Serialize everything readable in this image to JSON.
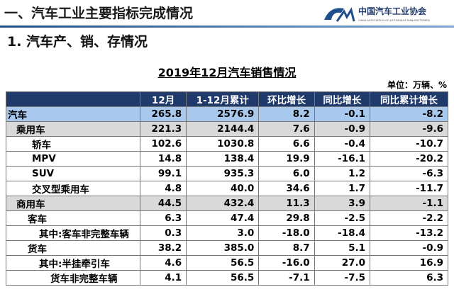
{
  "header": {
    "title": "一、汽车工业主要指标完成情况",
    "logo_cn": "中国汽车工业协会",
    "logo_en": "CHINA ASSOCIATION OF AUTOMOBILE MANUFACTURERS"
  },
  "section": "1. 汽车产、销、存情况",
  "table": {
    "title": "2019年12月汽车销售情况",
    "unit": "单位：万辆、%",
    "columns": [
      "",
      "12月",
      "1-12月累计",
      "环比增长",
      "同比增长",
      "同比累计增长"
    ],
    "rows": [
      [
        "汽车",
        "265.8",
        "2576.9",
        "8.2",
        "-0.1",
        "-8.2"
      ],
      [
        "乘用车",
        "221.3",
        "2144.4",
        "7.6",
        "-0.9",
        "-9.6"
      ],
      [
        "轿车",
        "102.6",
        "1030.8",
        "6.6",
        "-0.4",
        "-10.7"
      ],
      [
        "MPV",
        "14.8",
        "138.4",
        "19.9",
        "-16.1",
        "-20.2"
      ],
      [
        "SUV",
        "99.1",
        "935.3",
        "6.0",
        "1.2",
        "-6.3"
      ],
      [
        "交叉型乘用车",
        "4.8",
        "40.0",
        "34.6",
        "1.7",
        "-11.7"
      ],
      [
        "商用车",
        "44.5",
        "432.4",
        "11.3",
        "3.9",
        "-1.1"
      ],
      [
        "客车",
        "6.3",
        "47.4",
        "29.8",
        "-2.5",
        "-2.2"
      ],
      [
        "其中:客车非完整车辆",
        "0.3",
        "3.0",
        "-18.0",
        "-18.4",
        "-13.2"
      ],
      [
        "货车",
        "38.2",
        "385.0",
        "8.7",
        "5.1",
        "-0.9"
      ],
      [
        "其中:半挂牵引车",
        "4.6",
        "56.5",
        "-16.0",
        "27.0",
        "16.9"
      ],
      [
        "货车非完整车辆",
        "4.1",
        "56.5",
        "-7.1",
        "-7.5",
        "6.3"
      ]
    ]
  }
}
